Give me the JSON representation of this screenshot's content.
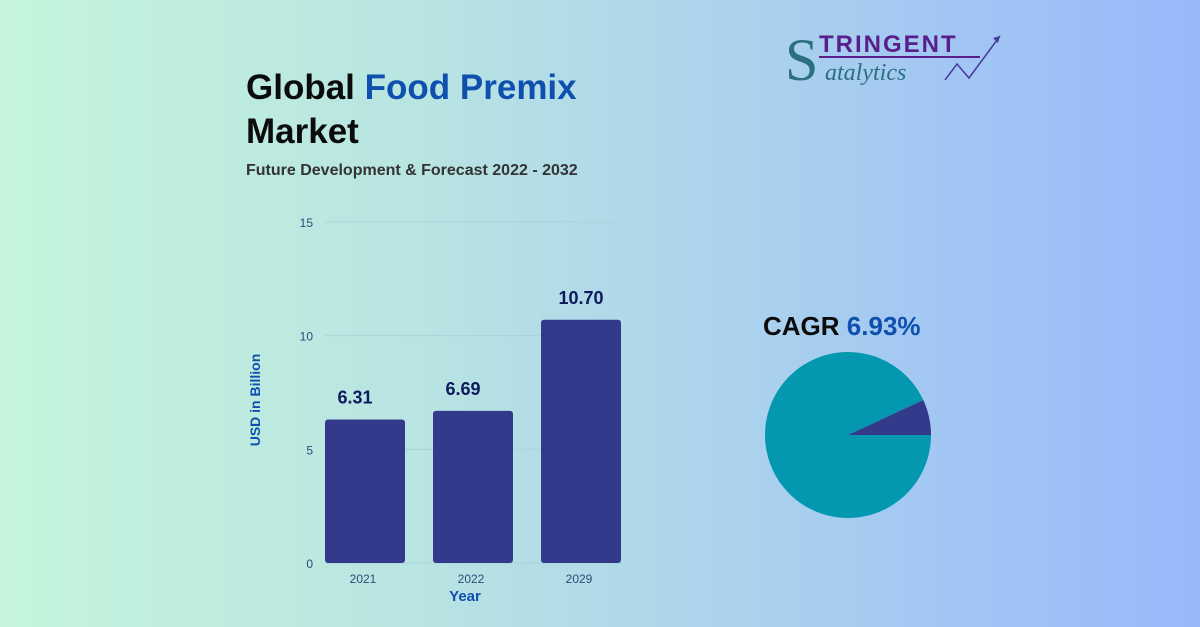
{
  "header": {
    "title_part1": "Global",
    "title_part2": "Food Premix",
    "title_part3": "Market",
    "subtitle": "Future Development & Forecast 2022 - 2032"
  },
  "logo": {
    "text_top": "TRINGENT",
    "text_bottom": "atalytics",
    "initial": "S"
  },
  "colors": {
    "bar": "#343a8b",
    "pie_main": "#0497b0",
    "pie_slice": "#343a8b",
    "accent": "#0f4fae"
  },
  "chart_data": [
    {
      "type": "bar",
      "categories": [
        "2021",
        "2022",
        "2029"
      ],
      "values": [
        6.31,
        6.69,
        10.7
      ],
      "value_labels": [
        "6.31",
        "6.69",
        "10.70"
      ],
      "xlabel": "Year",
      "ylabel": "USD in Billion",
      "ylim": [
        0,
        15
      ],
      "yticks": [
        "0",
        "5",
        "10",
        "15"
      ],
      "grid": true
    },
    {
      "type": "pie",
      "title_label": "CAGR",
      "title_value": "6.93%",
      "values": [
        6.93,
        93.07
      ]
    }
  ]
}
